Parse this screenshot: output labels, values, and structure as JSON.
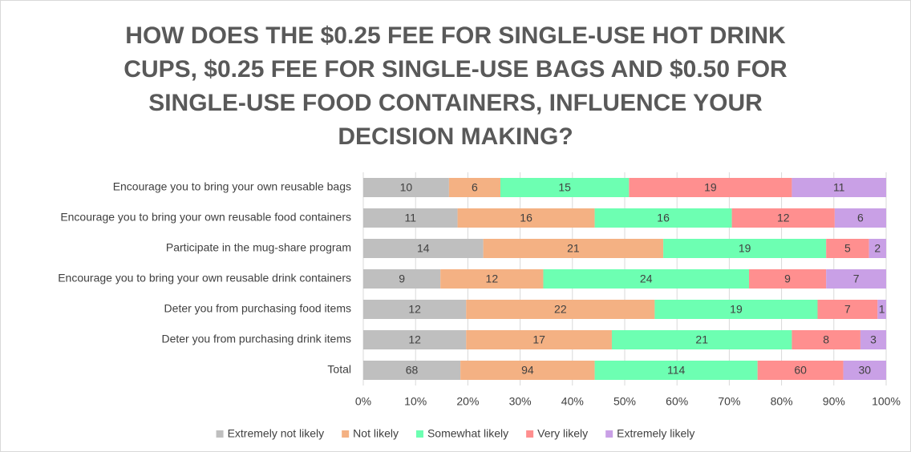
{
  "chart_data": {
    "type": "bar",
    "orientation": "horizontal",
    "stacked": "percent",
    "title": "HOW DOES THE $0.25 FEE FOR SINGLE-USE HOT DRINK CUPS, $0.25 FEE FOR SINGLE-USE BAGS AND $0.50 FOR SINGLE-USE FOOD CONTAINERS, INFLUENCE YOUR DECISION MAKING?",
    "categories": [
      "Encourage you to bring your own reusable bags",
      "Encourage you to bring your own reusable food containers",
      "Participate in the mug-share program",
      "Encourage you to bring your own reusable drink containers",
      "Deter you from purchasing food items",
      "Deter you from purchasing drink items",
      "Total"
    ],
    "series": [
      {
        "name": "Extremely not likely",
        "color": "#bfbfbf",
        "values": [
          10,
          11,
          14,
          9,
          12,
          12,
          68
        ]
      },
      {
        "name": "Not likely",
        "color": "#f4b183",
        "values": [
          6,
          16,
          21,
          12,
          22,
          17,
          94
        ]
      },
      {
        "name": "Somewhat likely",
        "color": "#6dffb2",
        "values": [
          15,
          16,
          19,
          24,
          19,
          21,
          114
        ]
      },
      {
        "name": "Very likely",
        "color": "#ff8f8f",
        "values": [
          19,
          12,
          5,
          9,
          7,
          8,
          60
        ]
      },
      {
        "name": "Extremely likely",
        "color": "#c9a0e6",
        "values": [
          11,
          6,
          2,
          7,
          1,
          3,
          30
        ]
      }
    ],
    "xlim": [
      0,
      100
    ],
    "xticks": [
      {
        "value": 0,
        "label": "0%"
      },
      {
        "value": 10,
        "label": "10%"
      },
      {
        "value": 20,
        "label": "20%"
      },
      {
        "value": 30,
        "label": "30%"
      },
      {
        "value": 40,
        "label": "40%"
      },
      {
        "value": 50,
        "label": "50%"
      },
      {
        "value": 60,
        "label": "60%"
      },
      {
        "value": 70,
        "label": "70%"
      },
      {
        "value": 80,
        "label": "80%"
      },
      {
        "value": 90,
        "label": "90%"
      },
      {
        "value": 100,
        "label": "100%"
      }
    ],
    "grid": true,
    "legend": "bottom"
  }
}
